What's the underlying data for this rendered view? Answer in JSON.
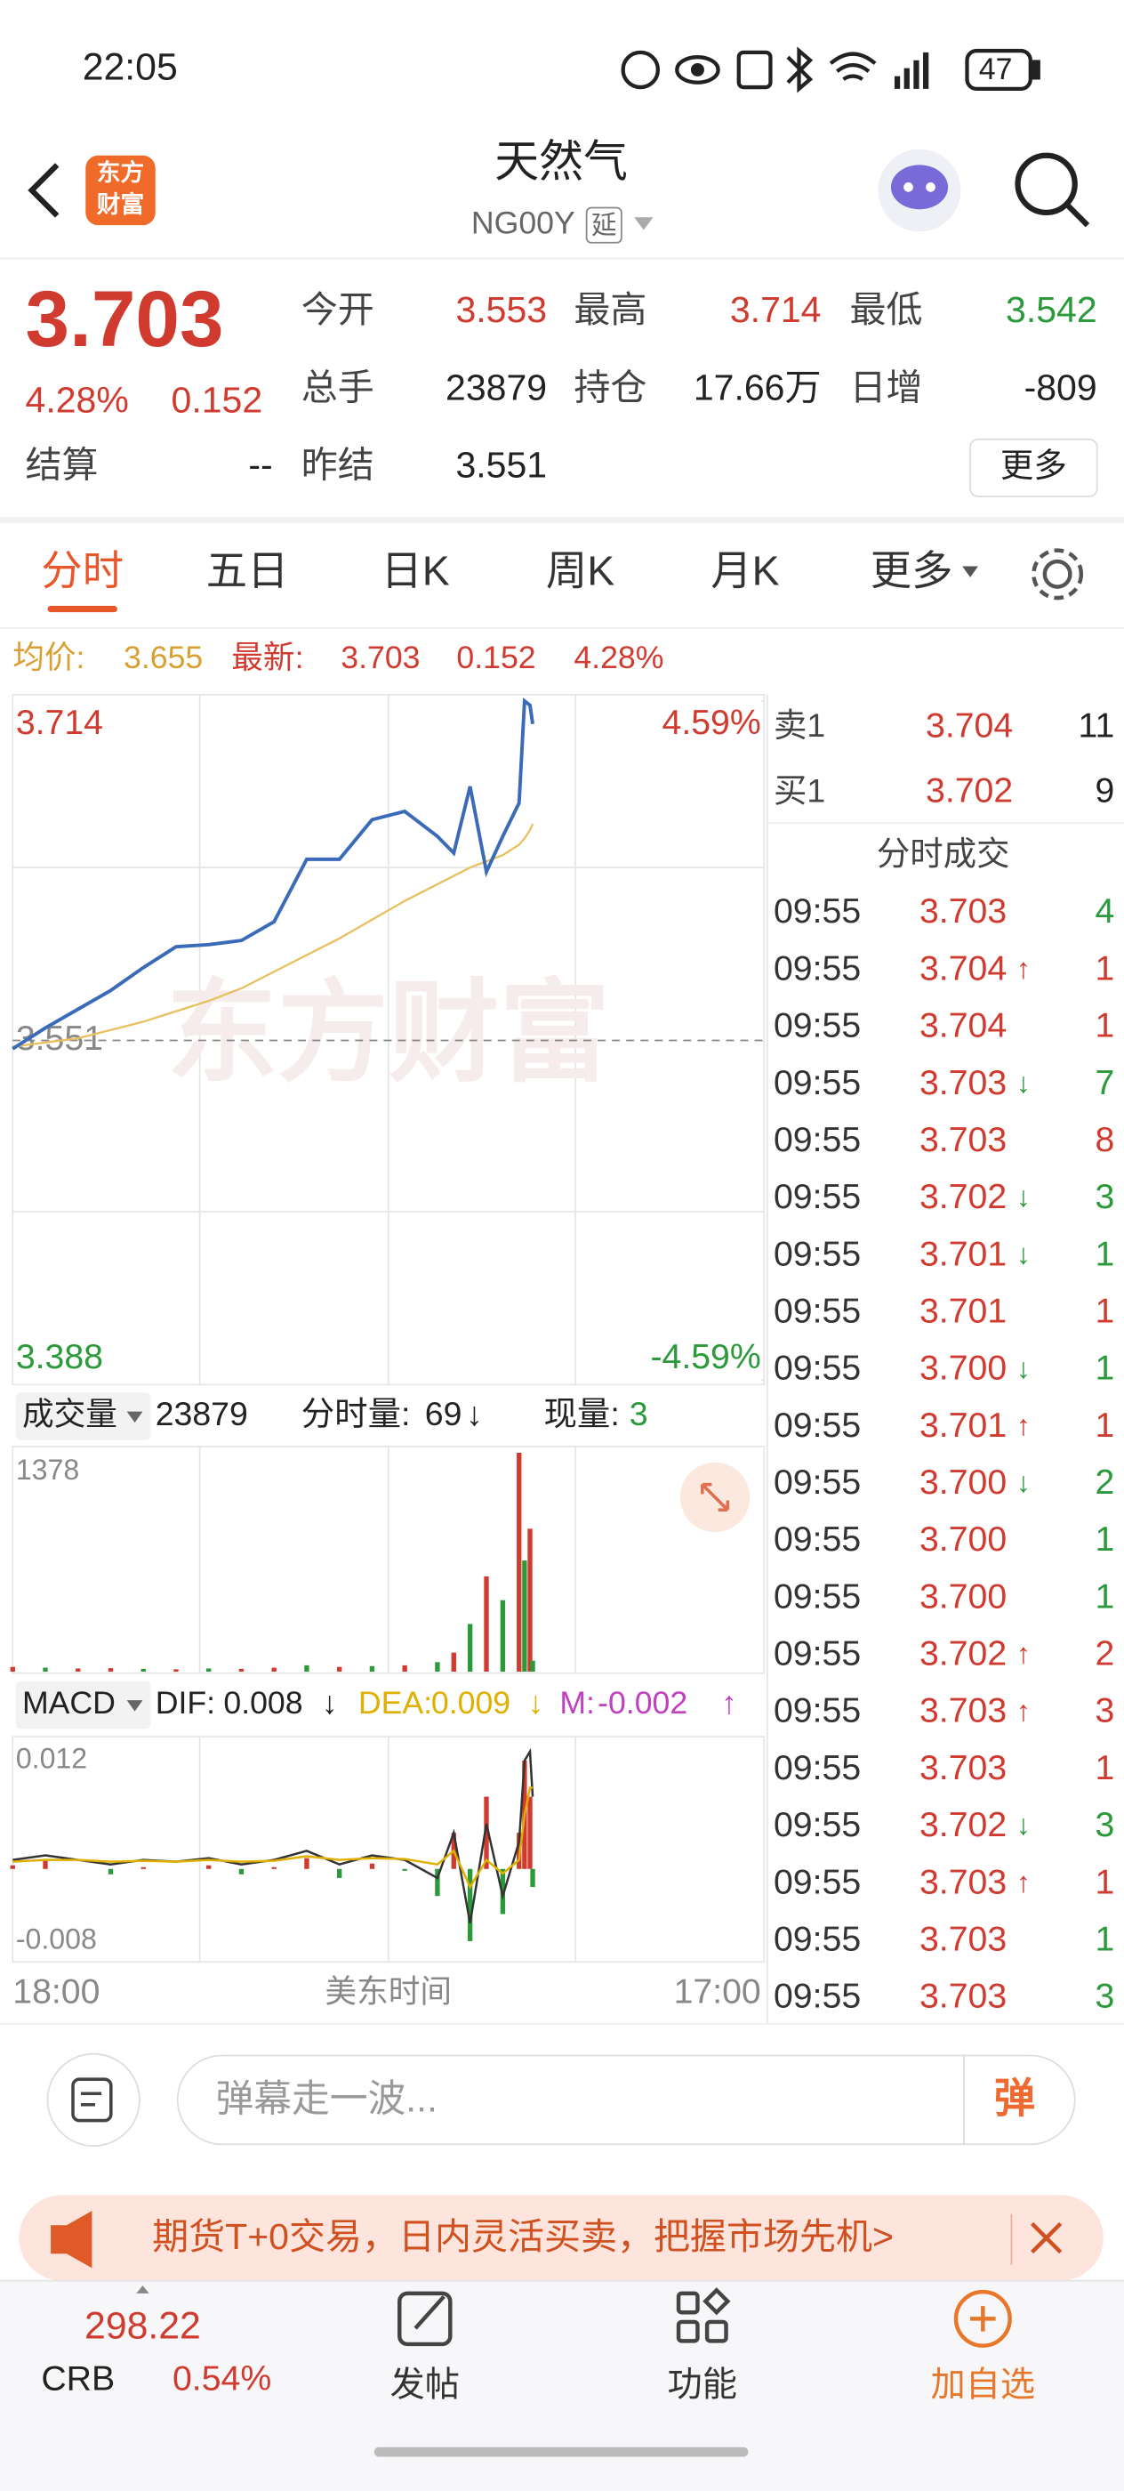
{
  "status_bar": {
    "time": "22:05",
    "battery": "47"
  },
  "header": {
    "logo": [
      "东方",
      "财富"
    ],
    "title": "天然气",
    "code": "NG00Y",
    "delay_tag": "延"
  },
  "quote": {
    "price": "3.703",
    "change_pct": "4.28%",
    "change": "0.152",
    "fields": [
      {
        "label": "今开",
        "value": "3.553",
        "color": "#d03a2f"
      },
      {
        "label": "最高",
        "value": "3.714",
        "color": "#d03a2f"
      },
      {
        "label": "最低",
        "value": "3.542",
        "color": "#2a9a3a"
      },
      {
        "label": "总手",
        "value": "23879",
        "color": "#222222"
      },
      {
        "label": "持仓",
        "value": "17.66万",
        "color": "#222222"
      },
      {
        "label": "日增",
        "value": "-809",
        "color": "#222222"
      },
      {
        "label": "结算",
        "value": "--",
        "color": "#222222"
      },
      {
        "label": "昨结",
        "value": "3.551",
        "color": "#222222"
      }
    ],
    "more_button": "更多"
  },
  "tabs": {
    "items": [
      "分时",
      "五日",
      "日K",
      "周K",
      "月K",
      "更多"
    ],
    "active": 0
  },
  "info_line": {
    "avg_label": "均价:",
    "avg": "3.655",
    "latest_label": "最新:",
    "latest": "3.703",
    "change": "0.152",
    "change_pct": "4.28%"
  },
  "price_chart": {
    "type": "line",
    "watermark": "东方财富",
    "xlim": [
      "18:00",
      "17:00"
    ],
    "x_label": "美东时间",
    "ylim": [
      3.388,
      3.714
    ],
    "yticks": [
      3.714,
      3.551,
      3.388
    ],
    "y2lim": [
      -4.59,
      4.59
    ],
    "y2ticks": [
      {
        "value": 4.59,
        "label": "4.59%"
      },
      {
        "value": -4.59,
        "label": "-4.59%"
      }
    ],
    "x": [
      "18:00",
      "19:00",
      "20:00",
      "21:00",
      "22:00",
      "23:00",
      "00:00",
      "01:00",
      "02:00",
      "03:00",
      "04:00",
      "05:00",
      "06:00",
      "07:00",
      "07:30",
      "08:00",
      "08:30",
      "09:00",
      "09:30",
      "09:40",
      "09:50",
      "09:55"
    ],
    "series": [
      {
        "color": "#3a6ab8",
        "values": [
          3.547,
          3.557,
          3.566,
          3.575,
          3.586,
          3.596,
          3.597,
          3.599,
          3.608,
          3.638,
          3.638,
          3.657,
          3.661,
          3.649,
          3.641,
          3.673,
          3.632,
          3.649,
          3.665,
          3.714,
          3.712,
          3.703
        ]
      },
      {
        "color": "#e8c060",
        "values": [
          3.548,
          3.55,
          3.552,
          3.556,
          3.56,
          3.565,
          3.57,
          3.576,
          3.584,
          3.592,
          3.6,
          3.609,
          3.618,
          3.626,
          3.63,
          3.634,
          3.637,
          3.64,
          3.645,
          3.648,
          3.652,
          3.655
        ]
      }
    ]
  },
  "volume_chart": {
    "type": "bar",
    "label": "成交量",
    "total": "23879",
    "period_label": "分时量:",
    "period_value": "69",
    "period_arrow": "↓",
    "current_label": "现量:",
    "current_value": "3",
    "ylim": [
      0,
      1378
    ],
    "yticks": [
      1378
    ],
    "values": [
      30,
      25,
      20,
      22,
      18,
      15,
      20,
      18,
      25,
      40,
      30,
      35,
      40,
      60,
      120,
      300,
      600,
      450,
      1378,
      700,
      900,
      69
    ],
    "colors": [
      "#d03a2f",
      "#2a9a3a",
      "#d03a2f",
      "#d03a2f",
      "#2a9a3a",
      "#d03a2f",
      "#2a9a3a",
      "#d03a2f",
      "#d03a2f",
      "#2a9a3a",
      "#d03a2f",
      "#2a9a3a",
      "#d03a2f",
      "#2a9a3a",
      "#d03a2f",
      "#2a9a3a",
      "#d03a2f",
      "#2a9a3a",
      "#d03a2f",
      "#2a9a3a",
      "#d03a2f",
      "#2a9a3a"
    ]
  },
  "macd_chart": {
    "type": "line",
    "label": "MACD",
    "dif_label": "DIF:",
    "dif": "0.008",
    "dif_arrow": "↓",
    "dea_label": "DEA:",
    "dea": "0.009",
    "dea_arrow": "↓",
    "m_label": "M:",
    "m": "-0.002",
    "m_arrow": "↑",
    "ylim": [
      -0.0103,
      0.0143
    ],
    "yticks": [
      0.012,
      -0.008
    ],
    "series": [
      {
        "color": "#333333",
        "values": [
          0.001,
          0.0015,
          0.001,
          0.0005,
          0.001,
          0.0008,
          0.0012,
          0.0005,
          0.001,
          0.002,
          0.0005,
          0.0015,
          0.001,
          -0.001,
          0.004,
          -0.006,
          0.005,
          -0.003,
          0.003,
          0.012,
          0.013,
          0.008
        ]
      },
      {
        "color": "#e0b000",
        "values": [
          0.0008,
          0.001,
          0.001,
          0.0008,
          0.0009,
          0.0008,
          0.001,
          0.0008,
          0.0009,
          0.0014,
          0.001,
          0.0012,
          0.0011,
          0.0005,
          0.002,
          -0.002,
          0.001,
          -0.0005,
          0.001,
          0.006,
          0.009,
          0.009
        ]
      }
    ],
    "histogram": {
      "values": [
        0.0004,
        0.001,
        0,
        -0.0006,
        0.0002,
        0,
        0.0004,
        -0.0006,
        0.0002,
        0.0012,
        -0.001,
        0.0006,
        -0.0002,
        -0.003,
        0.004,
        -0.008,
        0.008,
        -0.005,
        0.004,
        0.012,
        0.008,
        -0.002
      ]
    }
  },
  "order_book": {
    "rows": [
      {
        "label": "卖1",
        "price": "3.704",
        "volume": "11"
      },
      {
        "label": "买1",
        "price": "3.702",
        "volume": "9"
      }
    ]
  },
  "trades": {
    "title": "分时成交",
    "rows": [
      {
        "time": "09:55",
        "price": "3.703",
        "volume": "4",
        "volume_color": "#2a9a3a"
      },
      {
        "time": "09:55",
        "price": "3.704",
        "arrow": "↑",
        "volume": "1",
        "volume_color": "#d03a2f"
      },
      {
        "time": "09:55",
        "price": "3.704",
        "volume": "1",
        "volume_color": "#d03a2f"
      },
      {
        "time": "09:55",
        "price": "3.703",
        "arrow": "↓",
        "volume": "7",
        "volume_color": "#2a9a3a"
      },
      {
        "time": "09:55",
        "price": "3.703",
        "volume": "8",
        "volume_color": "#d03a2f"
      },
      {
        "time": "09:55",
        "price": "3.702",
        "arrow": "↓",
        "volume": "3",
        "volume_color": "#2a9a3a"
      },
      {
        "time": "09:55",
        "price": "3.701",
        "arrow": "↓",
        "volume": "1",
        "volume_color": "#2a9a3a"
      },
      {
        "time": "09:55",
        "price": "3.701",
        "volume": "1",
        "volume_color": "#d03a2f"
      },
      {
        "time": "09:55",
        "price": "3.700",
        "arrow": "↓",
        "volume": "1",
        "volume_color": "#2a9a3a"
      },
      {
        "time": "09:55",
        "price": "3.701",
        "arrow": "↑",
        "volume": "1",
        "volume_color": "#d03a2f"
      },
      {
        "time": "09:55",
        "price": "3.700",
        "arrow": "↓",
        "volume": "2",
        "volume_color": "#2a9a3a"
      },
      {
        "time": "09:55",
        "price": "3.700",
        "volume": "1",
        "volume_color": "#2a9a3a"
      },
      {
        "time": "09:55",
        "price": "3.700",
        "volume": "1",
        "volume_color": "#2a9a3a"
      },
      {
        "time": "09:55",
        "price": "3.702",
        "arrow": "↑",
        "volume": "2",
        "volume_color": "#d03a2f"
      },
      {
        "time": "09:55",
        "price": "3.703",
        "arrow": "↑",
        "volume": "3",
        "volume_color": "#d03a2f"
      },
      {
        "time": "09:55",
        "price": "3.703",
        "volume": "1",
        "volume_color": "#d03a2f"
      },
      {
        "time": "09:55",
        "price": "3.702",
        "arrow": "↓",
        "volume": "3",
        "volume_color": "#2a9a3a"
      },
      {
        "time": "09:55",
        "price": "3.703",
        "arrow": "↑",
        "volume": "1",
        "volume_color": "#d03a2f"
      },
      {
        "time": "09:55",
        "price": "3.703",
        "volume": "1",
        "volume_color": "#2a9a3a"
      },
      {
        "time": "09:55",
        "price": "3.703",
        "volume": "3",
        "volume_color": "#2a9a3a"
      }
    ]
  },
  "comment_bar": {
    "placeholder": "弹幕走一波...",
    "button": "弹"
  },
  "banner": {
    "text": "期货T+0交易，日内灵活买卖，把握市场先机>"
  },
  "bottom_nav": {
    "index_value": "298.22",
    "index_name": "CRB",
    "index_change": "0.54%",
    "items": [
      "发帖",
      "功能",
      "加自选"
    ]
  }
}
